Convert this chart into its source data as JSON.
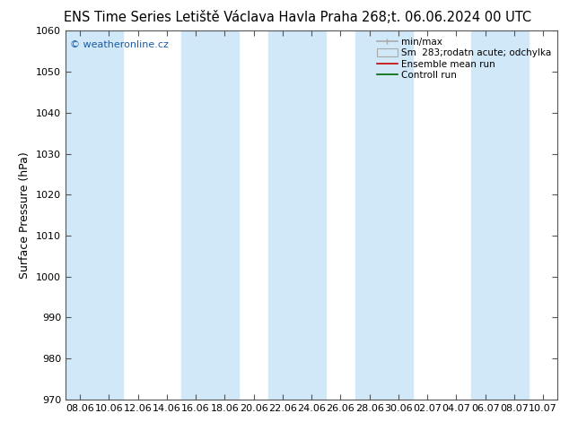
{
  "title_left": "ENS Time Series Letiště Václava Havla Praha",
  "title_right": "268;t. 06.06.2024 00 UTC",
  "ylabel": "Surface Pressure (hPa)",
  "ylim": [
    970,
    1060
  ],
  "yticks": [
    970,
    980,
    990,
    1000,
    1010,
    1020,
    1030,
    1040,
    1050,
    1060
  ],
  "xtick_labels": [
    "08.06",
    "10.06",
    "12.06",
    "14.06",
    "16.06",
    "18.06",
    "20.06",
    "22.06",
    "24.06",
    "26.06",
    "28.06",
    "30.06",
    "02.07",
    "04.07",
    "06.07",
    "08.07",
    "10.07"
  ],
  "num_xticks": 17,
  "band_indices": [
    0,
    4,
    7,
    10,
    14
  ],
  "band_color": "#d0e8f8",
  "background_color": "#ffffff",
  "watermark": "© weatheronline.cz",
  "watermark_color": "#1a5ba6",
  "legend_entries": [
    "min/max",
    "Sm  283;rodatn acute; odchylka",
    "Ensemble mean run",
    "Controll run"
  ],
  "legend_line_color": "#aaaaaa",
  "legend_patch_color": "#d0e8f8",
  "legend_patch_edge": "#aaaaaa",
  "legend_red": "#cc0000",
  "legend_green": "#006600",
  "title_fontsize": 10.5,
  "tick_fontsize": 8,
  "ylabel_fontsize": 9,
  "legend_fontsize": 7.5
}
